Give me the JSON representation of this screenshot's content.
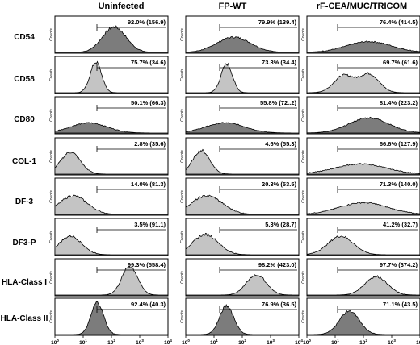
{
  "figure": {
    "columns": [
      "Uninfected",
      "FP-WT",
      "rF-CEA/MUC/TRICOM"
    ],
    "rows": [
      "CD54",
      "CD58",
      "CD80",
      "COL-1",
      "DF-3",
      "DF3-P",
      "HLA-Class I",
      "HLA-Class II"
    ],
    "y_label": "Counts",
    "x_ticks": [
      {
        "base": "10",
        "exp": "0"
      },
      {
        "base": "10",
        "exp": "1"
      },
      {
        "base": "10",
        "exp": "2"
      },
      {
        "base": "10",
        "exp": "3"
      },
      {
        "base": "10",
        "exp": "4"
      }
    ]
  },
  "chart_data": {
    "type": "histogram-grid",
    "x_scale": "log",
    "xlim": [
      1,
      10000
    ],
    "fill_colors": {
      "dark": "#7c7c7c",
      "light": "#c4c4c4"
    },
    "panels": [
      [
        {
          "label": "92.0% (156.9)",
          "tone": "dark",
          "peaks": [
            {
              "mu": 2.1,
              "sd": 0.42,
              "h": 0.75
            }
          ]
        },
        {
          "label": "79.9% (139.4)",
          "tone": "dark",
          "peaks": [
            {
              "mu": 1.7,
              "sd": 0.6,
              "h": 0.45
            }
          ]
        },
        {
          "label": "76.4% (414.5)",
          "tone": "dark",
          "peaks": [
            {
              "mu": 2.2,
              "sd": 0.8,
              "h": 0.32
            }
          ]
        }
      ],
      [
        {
          "label": "75.7% (34.6)",
          "tone": "light",
          "peaks": [
            {
              "mu": 1.45,
              "sd": 0.2,
              "h": 0.9
            }
          ]
        },
        {
          "label": "73.3% (34.4)",
          "tone": "light",
          "peaks": [
            {
              "mu": 1.45,
              "sd": 0.2,
              "h": 0.85
            }
          ]
        },
        {
          "label": "69.7% (61.6)",
          "tone": "light",
          "peaks": [
            {
              "mu": 1.3,
              "sd": 0.35,
              "h": 0.5
            },
            {
              "mu": 2.2,
              "sd": 0.35,
              "h": 0.55
            }
          ]
        }
      ],
      [
        {
          "label": "50.1% (66.3)",
          "tone": "dark",
          "peaks": [
            {
              "mu": 1.2,
              "sd": 0.65,
              "h": 0.3
            }
          ]
        },
        {
          "label": "55.8% (72..2)",
          "tone": "dark",
          "peaks": [
            {
              "mu": 1.4,
              "sd": 0.7,
              "h": 0.3
            }
          ]
        },
        {
          "label": "81.4% (223.2)",
          "tone": "dark",
          "peaks": [
            {
              "mu": 2.2,
              "sd": 0.7,
              "h": 0.45
            }
          ]
        }
      ],
      [
        {
          "label": "2.8% (35.6)",
          "tone": "light",
          "peaks": [
            {
              "mu": 0.55,
              "sd": 0.35,
              "h": 0.65
            }
          ]
        },
        {
          "label": "4.6% (55.3)",
          "tone": "light",
          "peaks": [
            {
              "mu": 0.55,
              "sd": 0.3,
              "h": 0.7
            }
          ]
        },
        {
          "label": "66.6% (127.9)",
          "tone": "light",
          "peaks": [
            {
              "mu": 1.9,
              "sd": 0.9,
              "h": 0.3
            }
          ]
        }
      ],
      [
        {
          "label": "14.0% (81.3)",
          "tone": "light",
          "peaks": [
            {
              "mu": 0.65,
              "sd": 0.5,
              "h": 0.55
            }
          ]
        },
        {
          "label": "20.3% (53.5)",
          "tone": "light",
          "peaks": [
            {
              "mu": 0.75,
              "sd": 0.55,
              "h": 0.55
            }
          ]
        },
        {
          "label": "71.3% (140.0)",
          "tone": "light",
          "peaks": [
            {
              "mu": 2.0,
              "sd": 0.85,
              "h": 0.35
            }
          ]
        }
      ],
      [
        {
          "label": "3.5% (91.1)",
          "tone": "light",
          "peaks": [
            {
              "mu": 0.55,
              "sd": 0.4,
              "h": 0.55
            }
          ]
        },
        {
          "label": "5.3% (28.7)",
          "tone": "light",
          "peaks": [
            {
              "mu": 0.7,
              "sd": 0.45,
              "h": 0.6
            }
          ]
        },
        {
          "label": "41.2% (32.7)",
          "tone": "light",
          "peaks": [
            {
              "mu": 1.2,
              "sd": 0.45,
              "h": 0.55
            }
          ]
        }
      ],
      [
        {
          "label": "99.3% (558.4)",
          "tone": "light",
          "peaks": [
            {
              "mu": 2.65,
              "sd": 0.28,
              "h": 0.85
            }
          ]
        },
        {
          "label": "98.2% (423.0)",
          "tone": "light",
          "peaks": [
            {
              "mu": 2.5,
              "sd": 0.35,
              "h": 0.6
            }
          ]
        },
        {
          "label": "97.7% (374.2)",
          "tone": "light",
          "peaks": [
            {
              "mu": 2.45,
              "sd": 0.4,
              "h": 0.55
            }
          ]
        }
      ],
      [
        {
          "label": "92.4% (40.3)",
          "tone": "dark",
          "peaks": [
            {
              "mu": 1.5,
              "sd": 0.22,
              "h": 0.95
            }
          ]
        },
        {
          "label": "76.9% (36.5)",
          "tone": "dark",
          "peaks": [
            {
              "mu": 1.45,
              "sd": 0.25,
              "h": 0.85
            }
          ]
        },
        {
          "label": "71.1% (43.5)",
          "tone": "dark",
          "peaks": [
            {
              "mu": 1.5,
              "sd": 0.35,
              "h": 0.7
            }
          ]
        }
      ]
    ]
  }
}
